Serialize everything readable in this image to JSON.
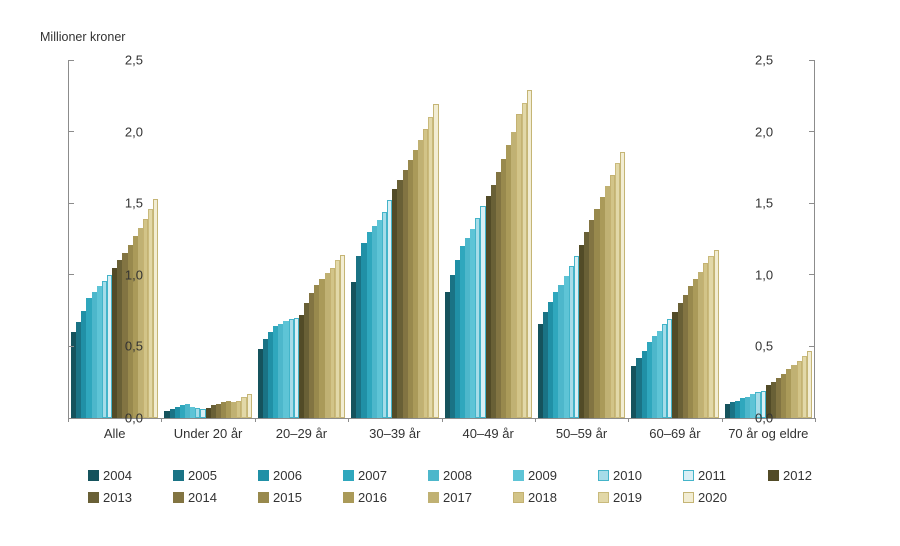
{
  "chart_data": {
    "type": "bar",
    "title": "Millioner kroner",
    "xlabel": "",
    "ylabel": "Millioner kroner",
    "ylim": [
      0,
      2.5
    ],
    "ytick_labels": [
      "0,0",
      "0,5",
      "1,0",
      "1,5",
      "2,0",
      "2,5"
    ],
    "ytick_values": [
      0,
      0.5,
      1.0,
      1.5,
      2.0,
      2.5
    ],
    "grid": false,
    "legend_position": "bottom",
    "dual_y_axis": true,
    "categories": [
      "Alle",
      "Under 20 år",
      "20–29 år",
      "30–39 år",
      "40–49 år",
      "50–59 år",
      "60–69 år",
      "70 år og eldre"
    ],
    "series": [
      {
        "name": "2004",
        "color": "#15535d",
        "border": "#15535d",
        "values": [
          0.6,
          0.05,
          0.48,
          0.95,
          0.88,
          0.66,
          0.36,
          0.1
        ]
      },
      {
        "name": "2005",
        "color": "#1a7385",
        "border": "#1a7385",
        "values": [
          0.67,
          0.06,
          0.55,
          1.13,
          1.0,
          0.74,
          0.42,
          0.11
        ]
      },
      {
        "name": "2006",
        "color": "#2090a6",
        "border": "#2090a6",
        "values": [
          0.75,
          0.08,
          0.6,
          1.22,
          1.1,
          0.81,
          0.47,
          0.12
        ]
      },
      {
        "name": "2007",
        "color": "#2fa7bd",
        "border": "#2fa7bd",
        "values": [
          0.84,
          0.09,
          0.64,
          1.3,
          1.2,
          0.88,
          0.53,
          0.14
        ]
      },
      {
        "name": "2008",
        "color": "#4db7cb",
        "border": "#4db7cb",
        "values": [
          0.88,
          0.1,
          0.66,
          1.34,
          1.26,
          0.93,
          0.57,
          0.15
        ]
      },
      {
        "name": "2009",
        "color": "#5ec4d6",
        "border": "#5ec4d6",
        "values": [
          0.92,
          0.08,
          0.68,
          1.38,
          1.32,
          0.99,
          0.61,
          0.17
        ]
      },
      {
        "name": "2010",
        "color": "#a6dce8",
        "border": "#44b4c9",
        "values": [
          0.96,
          0.07,
          0.69,
          1.44,
          1.4,
          1.06,
          0.66,
          0.18
        ]
      },
      {
        "name": "2011",
        "color": "#d9eff5",
        "border": "#44b4c9",
        "values": [
          1.0,
          0.06,
          0.7,
          1.52,
          1.48,
          1.13,
          0.69,
          0.19
        ]
      },
      {
        "name": "2012",
        "color": "#524b27",
        "border": "#524b27",
        "values": [
          1.05,
          0.07,
          0.72,
          1.6,
          1.55,
          1.21,
          0.74,
          0.23
        ]
      },
      {
        "name": "2013",
        "color": "#696036",
        "border": "#696036",
        "values": [
          1.1,
          0.09,
          0.8,
          1.66,
          1.63,
          1.3,
          0.8,
          0.25
        ]
      },
      {
        "name": "2014",
        "color": "#827442",
        "border": "#827442",
        "values": [
          1.15,
          0.1,
          0.87,
          1.73,
          1.72,
          1.38,
          0.86,
          0.28
        ]
      },
      {
        "name": "2015",
        "color": "#98894d",
        "border": "#98894d",
        "values": [
          1.21,
          0.11,
          0.93,
          1.8,
          1.81,
          1.46,
          0.92,
          0.31
        ]
      },
      {
        "name": "2016",
        "color": "#aa9a59",
        "border": "#aa9a59",
        "values": [
          1.27,
          0.12,
          0.97,
          1.87,
          1.91,
          1.54,
          0.97,
          0.34
        ]
      },
      {
        "name": "2017",
        "color": "#c0b173",
        "border": "#c0b173",
        "values": [
          1.33,
          0.11,
          1.01,
          1.94,
          2.0,
          1.62,
          1.02,
          0.37
        ]
      },
      {
        "name": "2018",
        "color": "#d2c488",
        "border": "#c4b272",
        "values": [
          1.39,
          0.12,
          1.05,
          2.02,
          2.12,
          1.7,
          1.08,
          0.4
        ]
      },
      {
        "name": "2019",
        "color": "#e2d8a8",
        "border": "#c9ba7c",
        "values": [
          1.46,
          0.15,
          1.1,
          2.1,
          2.2,
          1.78,
          1.13,
          0.43
        ]
      },
      {
        "name": "2020",
        "color": "#f2edd3",
        "border": "#c5b575",
        "values": [
          1.53,
          0.17,
          1.14,
          2.19,
          2.29,
          1.86,
          1.17,
          0.47
        ]
      }
    ]
  },
  "colors": {
    "axis": "#8c8c8c",
    "text": "#333333",
    "background": "#ffffff"
  }
}
